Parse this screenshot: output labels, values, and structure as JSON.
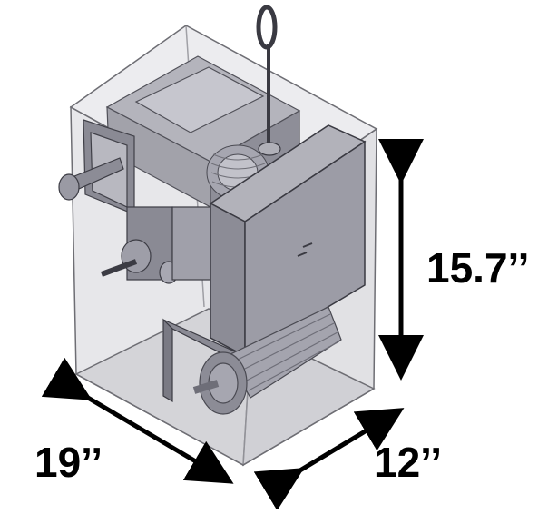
{
  "dimensions": {
    "height": "15.7’’",
    "width": "19’’",
    "depth": "12’’"
  },
  "colors": {
    "enclosure_fill": "#c9c9cf",
    "enclosure_edge": "#6e6e74",
    "mechanism_fill": "#9a9aa3",
    "mechanism_dark": "#6a6a72",
    "arrow": "#000000"
  }
}
